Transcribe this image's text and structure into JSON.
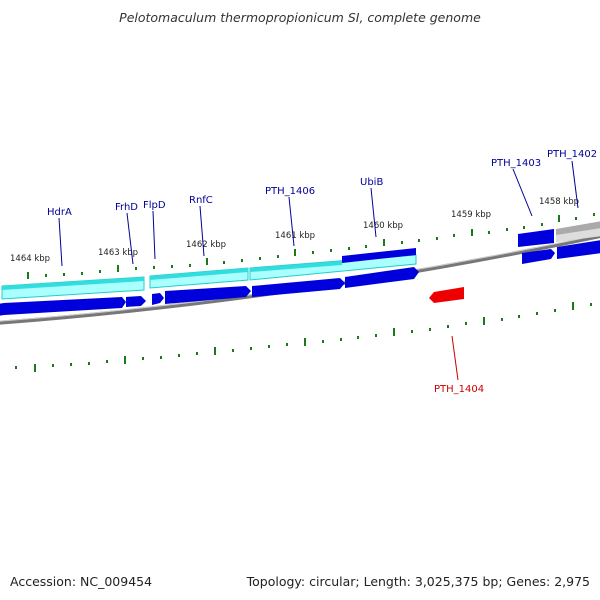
{
  "title": "Pelotomaculum thermopropionicum SI, complete genome",
  "footer": {
    "accession": "Accession: NC_009454",
    "summary": "Topology: circular; Length: 3,025,375 bp; Genes: 2,975"
  },
  "colors": {
    "gene_forward": "#0000dd",
    "gene_highlight": "#ee0000",
    "cds_band": "#33dddd",
    "label_blue": "#000099",
    "label_red": "#cc0000",
    "tick": "#1a7a1a",
    "backbone": "#777777"
  },
  "scale_labels": [
    "1464 kbp",
    "1463 kbp",
    "1462 kbp",
    "1461 kbp",
    "1460 kbp",
    "1459 kbp",
    "1458 kbp"
  ],
  "gene_labels": [
    {
      "name": "HdrA",
      "color": "blue"
    },
    {
      "name": "FrhD",
      "color": "blue"
    },
    {
      "name": "FlpD",
      "color": "blue"
    },
    {
      "name": "RnfC",
      "color": "blue"
    },
    {
      "name": "PTH_1406",
      "color": "blue"
    },
    {
      "name": "UbiB",
      "color": "blue"
    },
    {
      "name": "PTH_1403",
      "color": "blue"
    },
    {
      "name": "PTH_1402",
      "color": "blue"
    },
    {
      "name": "PTH_1404",
      "color": "red"
    }
  ]
}
